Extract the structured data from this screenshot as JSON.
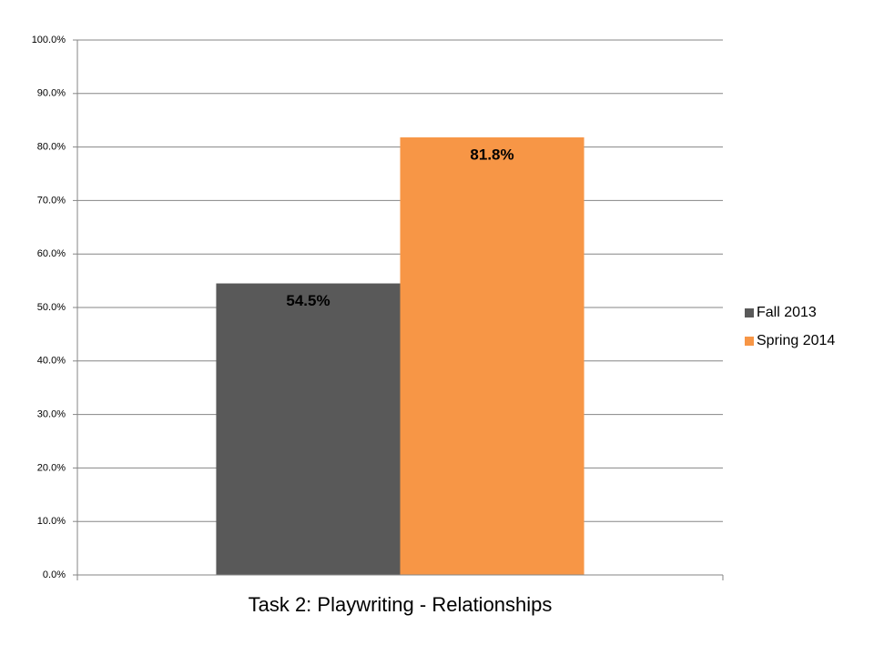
{
  "chart_data": {
    "type": "bar",
    "categories": [
      "Task 2: Playwriting - Relationships"
    ],
    "series": [
      {
        "name": "Fall 2013",
        "color": "#595959",
        "values": [
          54.5
        ],
        "value_labels": [
          "54.5%"
        ]
      },
      {
        "name": "Spring 2014",
        "color": "#f79646",
        "values": [
          81.8
        ],
        "value_labels": [
          "81.8%"
        ]
      }
    ],
    "ylim": [
      0,
      100
    ],
    "yticks": [
      {
        "value": 0,
        "label": "0.0%"
      },
      {
        "value": 10,
        "label": "10.0%"
      },
      {
        "value": 20,
        "label": "20.0%"
      },
      {
        "value": 30,
        "label": "30.0%"
      },
      {
        "value": 40,
        "label": "40.0%"
      },
      {
        "value": 50,
        "label": "50.0%"
      },
      {
        "value": 60,
        "label": "60.0%"
      },
      {
        "value": 70,
        "label": "70.0%"
      },
      {
        "value": 80,
        "label": "80.0%"
      },
      {
        "value": 90,
        "label": "90.0%"
      },
      {
        "value": 100,
        "label": "100.0%"
      }
    ],
    "grid": true,
    "legend": "right"
  }
}
